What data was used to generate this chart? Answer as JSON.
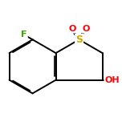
{
  "background_color": "#ffffff",
  "atom_colors": {
    "C": "#000000",
    "S": "#ccaa00",
    "O": "#ff0000",
    "F": "#33aa00",
    "H": "#000000"
  },
  "bond_color": "#000000",
  "bond_width": 1.4,
  "font_size_S": 9,
  "font_size_O": 8,
  "font_size_F": 8,
  "font_size_OH": 8,
  "figsize": [
    1.52,
    1.52
  ],
  "dpi": 100
}
